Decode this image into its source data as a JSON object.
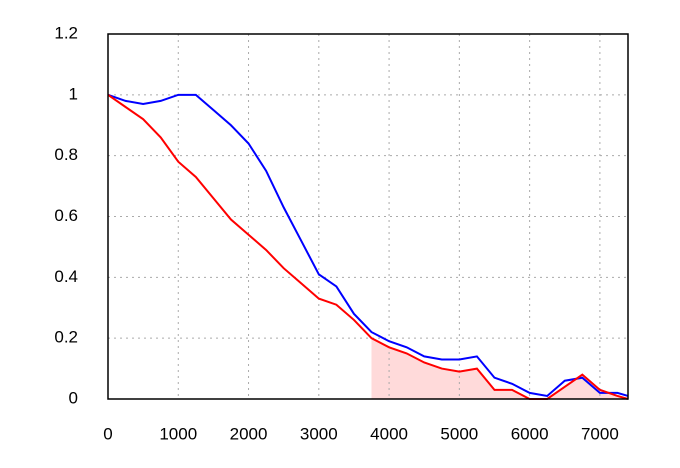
{
  "chart_data": {
    "type": "line",
    "x": [
      0,
      250,
      500,
      750,
      1000,
      1250,
      1500,
      1750,
      2000,
      2250,
      2500,
      2750,
      3000,
      3250,
      3500,
      3750,
      4000,
      4250,
      4500,
      4750,
      5000,
      5250,
      5500,
      5750,
      6000,
      6250,
      6500,
      6750,
      7000,
      7250,
      7400
    ],
    "series": [
      {
        "name": "blue",
        "color": "#0000ff",
        "values": [
          1.0,
          0.98,
          0.97,
          0.98,
          1.0,
          1.0,
          0.95,
          0.9,
          0.84,
          0.75,
          0.63,
          0.52,
          0.41,
          0.37,
          0.28,
          0.22,
          0.19,
          0.17,
          0.14,
          0.13,
          0.13,
          0.14,
          0.07,
          0.05,
          0.02,
          0.01,
          0.06,
          0.07,
          0.02,
          0.02,
          0.01
        ]
      },
      {
        "name": "red",
        "color": "#ff0000",
        "values": [
          1.0,
          0.96,
          0.92,
          0.86,
          0.78,
          0.73,
          0.66,
          0.59,
          0.54,
          0.49,
          0.43,
          0.38,
          0.33,
          0.31,
          0.26,
          0.2,
          0.17,
          0.15,
          0.12,
          0.1,
          0.09,
          0.1,
          0.03,
          0.03,
          0.0,
          0.0,
          0.04,
          0.08,
          0.03,
          0.01,
          0.0
        ]
      }
    ],
    "shaded_range": [
      3750,
      7400
    ],
    "shade_color": "#ffdada",
    "xlim": [
      0,
      7400
    ],
    "xticks": [
      0,
      1000,
      2000,
      3000,
      4000,
      5000,
      6000,
      7000
    ],
    "ylim": [
      0,
      1.2
    ],
    "yticks": [
      0,
      0.2,
      0.4,
      0.6,
      0.8,
      1,
      1.2
    ],
    "grid": true
  }
}
